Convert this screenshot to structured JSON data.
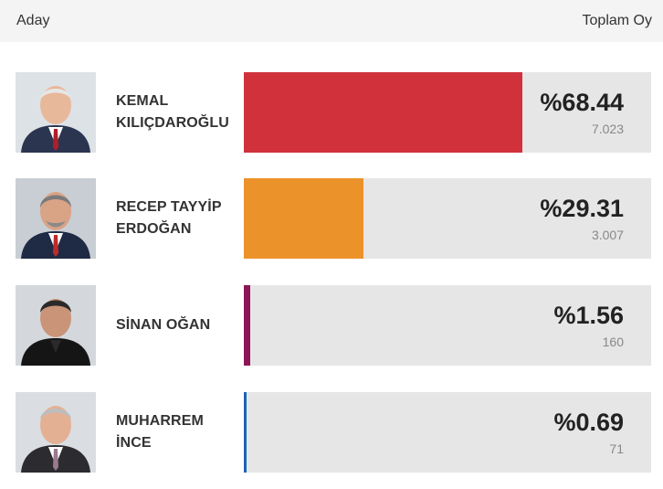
{
  "header": {
    "left_label": "Aday",
    "right_label": "Toplam Oy"
  },
  "candidates": [
    {
      "name_line1": "KEMAL",
      "name_line2": "KILIÇDAROĞLU",
      "percent_label": "%68.44",
      "percent": 68.44,
      "votes": "7.023",
      "color": "#d0313b"
    },
    {
      "name_line1": "RECEP TAYYİP",
      "name_line2": "ERDOĞAN",
      "percent_label": "%29.31",
      "percent": 29.31,
      "votes": "3.007",
      "color": "#ec922a"
    },
    {
      "name_line1": "SİNAN OĞAN",
      "name_line2": "",
      "percent_label": "%1.56",
      "percent": 1.56,
      "votes": "160",
      "color": "#8e1556"
    },
    {
      "name_line1": "MUHARREM",
      "name_line2": "İNCE",
      "percent_label": "%0.69",
      "percent": 0.69,
      "votes": "71",
      "color": "#1c63b8"
    }
  ]
}
